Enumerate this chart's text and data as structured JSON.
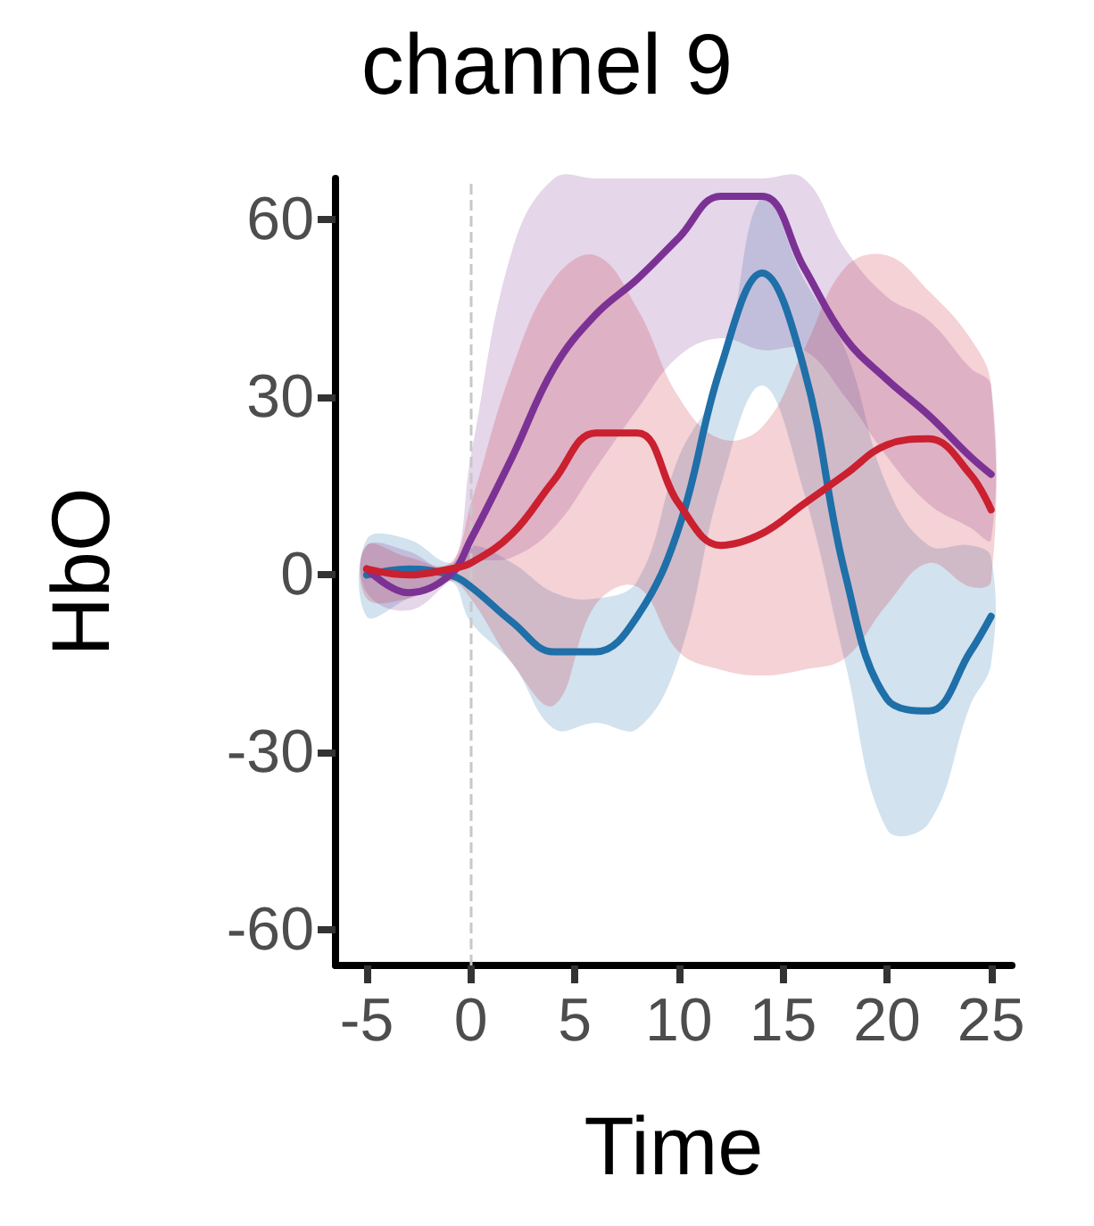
{
  "chart_data": {
    "type": "line",
    "title": "channel 9",
    "xlabel": "Time",
    "ylabel": "HbO",
    "x": [
      -5,
      -3,
      -1,
      0,
      2,
      4,
      6,
      8,
      10,
      12,
      14,
      16,
      18,
      20,
      22,
      24,
      25
    ],
    "series": [
      {
        "color": "#1f6fa8",
        "values": [
          0,
          1,
          0,
          -2,
          -8,
          -13,
          -13,
          -7,
          8,
          35,
          51,
          35,
          0,
          -21,
          -23,
          -13,
          -7
        ],
        "lower": [
          -7,
          -4,
          -1,
          -8,
          -15,
          -26,
          -25,
          -26,
          -14,
          15,
          32,
          14,
          -15,
          -43,
          -42,
          -22,
          -15
        ],
        "upper": [
          6,
          6,
          2,
          5,
          2,
          -3,
          -4,
          -1,
          20,
          33,
          64,
          50,
          38,
          15,
          5,
          5,
          3
        ]
      },
      {
        "color": "#7b3294",
        "values": [
          1,
          -3,
          0,
          6,
          20,
          35,
          44,
          50,
          57,
          64,
          64,
          52,
          40,
          33,
          27,
          20,
          17
        ],
        "lower": [
          -3,
          -6,
          -1,
          2,
          3,
          8,
          18,
          28,
          37,
          40,
          38,
          38,
          30,
          20,
          12,
          8,
          6
        ],
        "upper": [
          5,
          4,
          1,
          20,
          55,
          67,
          67,
          67,
          67,
          67,
          67,
          67,
          55,
          47,
          43,
          35,
          32
        ]
      },
      {
        "color": "#ca2030",
        "values": [
          1,
          0,
          1,
          2,
          7,
          16,
          24,
          24,
          12,
          5,
          7,
          12,
          17,
          22,
          23,
          17,
          11
        ],
        "lower": [
          -4,
          -4,
          -1,
          -4,
          -15,
          -22,
          -5,
          -2,
          -13,
          -16,
          -17,
          -16,
          -14,
          -5,
          2,
          -2,
          -1
        ],
        "upper": [
          5,
          3,
          2,
          12,
          35,
          50,
          54,
          45,
          30,
          23,
          25,
          38,
          52,
          54,
          48,
          40,
          32
        ]
      }
    ],
    "xlim": [
      -6.5,
      26
    ],
    "xticks": [
      -5,
      0,
      5,
      10,
      15,
      20,
      25
    ],
    "ylim": [
      -66,
      67
    ],
    "yticks": [
      -60,
      -30,
      0,
      30,
      60
    ],
    "ref_lines": [
      {
        "axis": "x",
        "value": 0,
        "color": "#c8c8c8",
        "line_style": "dashed"
      }
    ],
    "grid": false,
    "marker": "none",
    "line_style": "solid"
  }
}
